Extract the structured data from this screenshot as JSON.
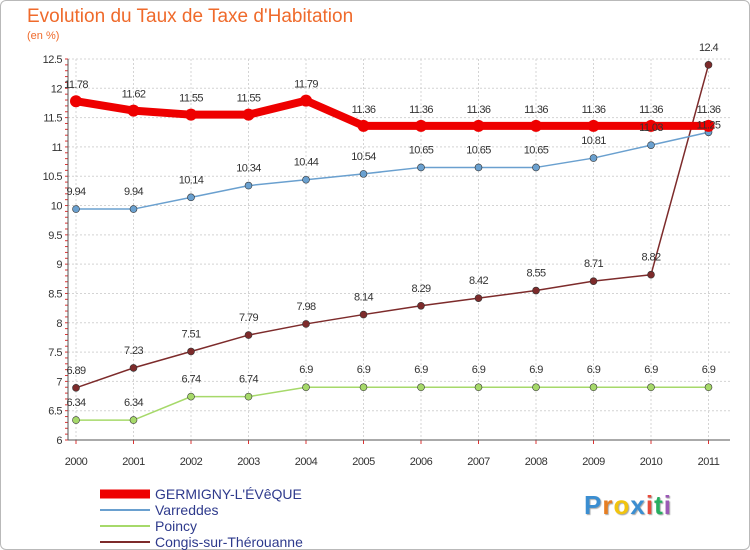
{
  "title": "Evolution du Taux de Taxe d'Habitation",
  "unit": "(en %)",
  "logo": {
    "letters": [
      "P",
      "r",
      "o",
      "x",
      "i",
      "t",
      "i"
    ],
    "colors": [
      "#3b8ed1",
      "#e67e22",
      "#f1c40f",
      "#3b8ed1",
      "#e74c3c",
      "#27ae60",
      "#9b59b6"
    ]
  },
  "chart_data": {
    "type": "line",
    "x": [
      "2000",
      "2001",
      "2002",
      "2003",
      "2004",
      "2005",
      "2006",
      "2007",
      "2008",
      "2009",
      "2010",
      "2011"
    ],
    "ylim": [
      6,
      12.5
    ],
    "yticks": [
      "6",
      "6.5",
      "7",
      "7.5",
      "8",
      "8.5",
      "9",
      "9.5",
      "10",
      "10.5",
      "11",
      "11.5",
      "12",
      "12.5"
    ],
    "grid": true,
    "series": [
      {
        "name": "GERMIGNY-L'ÉVêQUE",
        "color": "#ee0000",
        "width": 8,
        "values": [
          11.78,
          11.62,
          11.55,
          11.55,
          11.79,
          11.36,
          11.36,
          11.36,
          11.36,
          11.36,
          11.36,
          11.36
        ],
        "labels": [
          "11.78",
          "11.62",
          "11.55",
          "11.55",
          "11.79",
          "11.36",
          "11.36",
          "11.36",
          "11.36",
          "11.36",
          "11.36",
          "11.36"
        ]
      },
      {
        "name": "Varreddes",
        "color": "#6aa0cf",
        "width": 1.5,
        "values": [
          9.94,
          9.94,
          10.14,
          10.34,
          10.44,
          10.54,
          10.65,
          10.65,
          10.65,
          10.81,
          11.03,
          11.25
        ],
        "labels": [
          "9.94",
          "9.94",
          "10.14",
          "10.34",
          "10.44",
          "10.54",
          "10.65",
          "10.65",
          "10.65",
          "10.81",
          "11.03",
          "11.25"
        ]
      },
      {
        "name": "Poincy",
        "color": "#a6d96a",
        "width": 1.5,
        "values": [
          6.34,
          6.34,
          6.74,
          6.74,
          6.9,
          6.9,
          6.9,
          6.9,
          6.9,
          6.9,
          6.9,
          6.9
        ],
        "labels": [
          "6.34",
          "6.34",
          "6.74",
          "6.74",
          "6.9",
          "6.9",
          "6.9",
          "6.9",
          "6.9",
          "6.9",
          "6.9",
          "6.9"
        ]
      },
      {
        "name": "Congis-sur-Thérouanne",
        "color": "#7d2b2b",
        "width": 1.5,
        "values": [
          6.89,
          7.23,
          7.51,
          7.79,
          7.98,
          8.14,
          8.29,
          8.42,
          8.55,
          8.71,
          8.82,
          12.4
        ],
        "labels": [
          "6.89",
          "7.23",
          "7.51",
          "7.79",
          "7.98",
          "8.14",
          "8.29",
          "8.42",
          "8.55",
          "8.71",
          "8.82",
          "12.4"
        ]
      }
    ]
  }
}
